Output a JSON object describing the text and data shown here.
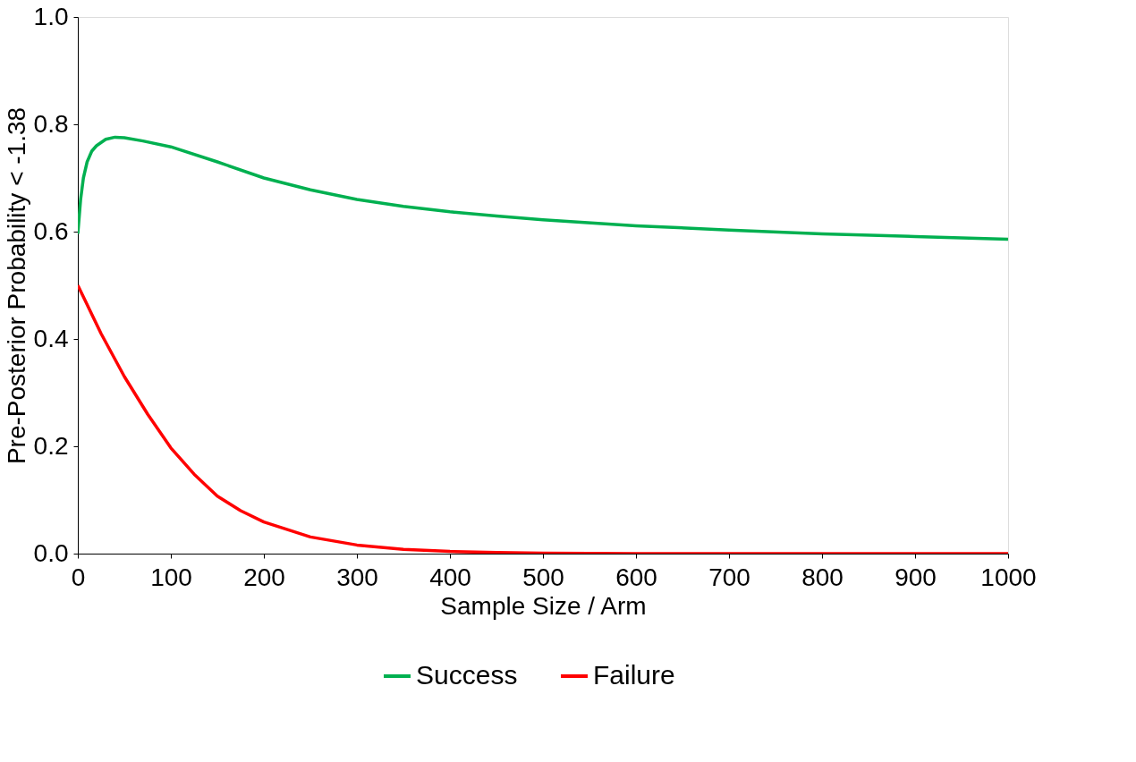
{
  "chart_data": {
    "type": "line",
    "xlabel": "Sample Size / Arm",
    "ylabel": "Pre-Posterior Probability < -1.38",
    "xlim": [
      0,
      1000
    ],
    "xticks": [
      0,
      100,
      200,
      300,
      400,
      500,
      600,
      700,
      800,
      900,
      1000
    ],
    "ylim": [
      0,
      1
    ],
    "yticks": [
      {
        "value": 0,
        "label": "0.0"
      },
      {
        "value": 0.2,
        "label": "0.2"
      },
      {
        "value": 0.4,
        "label": "0.4"
      },
      {
        "value": 0.6,
        "label": "0.6"
      },
      {
        "value": 0.8,
        "label": "0.8"
      },
      {
        "value": 1,
        "label": "1.0"
      }
    ],
    "grid": false,
    "legend": "bottom",
    "marker": "none",
    "line_style": "solid",
    "series": [
      {
        "name": "Success",
        "color": "#00b050",
        "x": [
          0,
          3,
          6,
          10,
          15,
          20,
          30,
          40,
          50,
          70,
          100,
          150,
          200,
          250,
          300,
          350,
          400,
          450,
          500,
          600,
          700,
          800,
          900,
          1000
        ],
        "values": [
          0.596,
          0.66,
          0.7,
          0.73,
          0.75,
          0.76,
          0.772,
          0.776,
          0.775,
          0.769,
          0.758,
          0.73,
          0.7,
          0.678,
          0.66,
          0.647,
          0.637,
          0.629,
          0.622,
          0.611,
          0.603,
          0.596,
          0.591,
          0.586
        ]
      },
      {
        "name": "Failure",
        "color": "#ff0000",
        "x": [
          0,
          25,
          50,
          75,
          100,
          125,
          150,
          175,
          200,
          250,
          300,
          350,
          400,
          450,
          500,
          600,
          700,
          800,
          900,
          1000
        ],
        "values": [
          0.5,
          0.41,
          0.33,
          0.26,
          0.197,
          0.148,
          0.107,
          0.08,
          0.059,
          0.031,
          0.016,
          0.008,
          0.004,
          0.002,
          0.001,
          0,
          0,
          0,
          0,
          0
        ]
      }
    ]
  }
}
